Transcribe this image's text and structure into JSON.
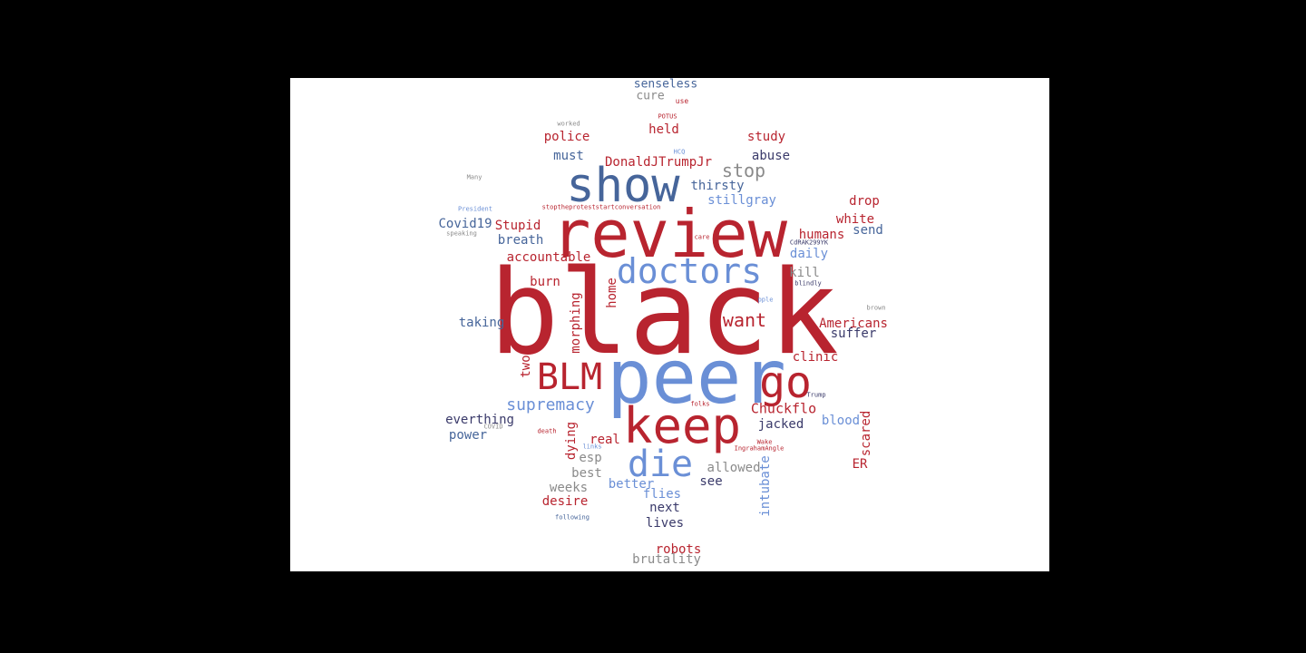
{
  "palette": {
    "red": "#b8242f",
    "lightblue": "#6a8fd6",
    "steel": "#46659a",
    "gray": "#8a8a8a",
    "navy": "#3a3a6a"
  },
  "words": [
    {
      "text": "black",
      "color": "red"
    },
    {
      "text": "peer",
      "color": "lightblue"
    },
    {
      "text": "review",
      "color": "red"
    },
    {
      "text": "show",
      "color": "steel"
    },
    {
      "text": "keep",
      "color": "red"
    },
    {
      "text": "doctors",
      "color": "lightblue"
    },
    {
      "text": "BLM",
      "color": "red"
    },
    {
      "text": "go",
      "color": "red"
    },
    {
      "text": "die",
      "color": "lightblue"
    },
    {
      "text": "stop",
      "color": "gray"
    },
    {
      "text": "want",
      "color": "red"
    },
    {
      "text": "supremacy",
      "color": "lightblue"
    },
    {
      "text": "senseless",
      "color": "steel"
    },
    {
      "text": "cure",
      "color": "gray"
    },
    {
      "text": "held",
      "color": "red"
    },
    {
      "text": "police",
      "color": "red"
    },
    {
      "text": "study",
      "color": "red"
    },
    {
      "text": "must",
      "color": "steel"
    },
    {
      "text": "DonaldJTrumpJr",
      "color": "red"
    },
    {
      "text": "abuse",
      "color": "navy"
    },
    {
      "text": "thirsty",
      "color": "steel"
    },
    {
      "text": "stillgray",
      "color": "lightblue"
    },
    {
      "text": "drop",
      "color": "red"
    },
    {
      "text": "white",
      "color": "red"
    },
    {
      "text": "Covid19",
      "color": "steel"
    },
    {
      "text": "Stupid",
      "color": "red"
    },
    {
      "text": "humans",
      "color": "red"
    },
    {
      "text": "send",
      "color": "steel"
    },
    {
      "text": "breath",
      "color": "steel"
    },
    {
      "text": "daily",
      "color": "lightblue"
    },
    {
      "text": "accountable",
      "color": "red"
    },
    {
      "text": "kill",
      "color": "gray"
    },
    {
      "text": "burn",
      "color": "red"
    },
    {
      "text": "taking",
      "color": "steel"
    },
    {
      "text": "Americans",
      "color": "red"
    },
    {
      "text": "suffer",
      "color": "navy"
    },
    {
      "text": "clinic",
      "color": "red"
    },
    {
      "text": "Chuckflo",
      "color": "red"
    },
    {
      "text": "everthing",
      "color": "navy"
    },
    {
      "text": "power",
      "color": "steel"
    },
    {
      "text": "jacked",
      "color": "navy"
    },
    {
      "text": "blood",
      "color": "lightblue"
    },
    {
      "text": "real",
      "color": "red"
    },
    {
      "text": "esp",
      "color": "gray"
    },
    {
      "text": "allowed",
      "color": "gray"
    },
    {
      "text": "best",
      "color": "gray"
    },
    {
      "text": "ER",
      "color": "red"
    },
    {
      "text": "weeks",
      "color": "gray"
    },
    {
      "text": "better",
      "color": "lightblue"
    },
    {
      "text": "flies",
      "color": "lightblue"
    },
    {
      "text": "see",
      "color": "navy"
    },
    {
      "text": "desire",
      "color": "red"
    },
    {
      "text": "next",
      "color": "navy"
    },
    {
      "text": "lives",
      "color": "navy"
    },
    {
      "text": "robots",
      "color": "red"
    },
    {
      "text": "brutality",
      "color": "gray"
    },
    {
      "text": "morphing",
      "color": "red"
    },
    {
      "text": "home",
      "color": "red"
    },
    {
      "text": "two",
      "color": "red"
    },
    {
      "text": "dying",
      "color": "red"
    },
    {
      "text": "intubate",
      "color": "lightblue"
    },
    {
      "text": "scared",
      "color": "red"
    },
    {
      "text": "use",
      "color": "red"
    },
    {
      "text": "POTUS",
      "color": "red"
    },
    {
      "text": "worked",
      "color": "gray"
    },
    {
      "text": "HCQ",
      "color": "lightblue"
    },
    {
      "text": "Many",
      "color": "gray"
    },
    {
      "text": "President",
      "color": "lightblue"
    },
    {
      "text": "stoptheproteststartconversation",
      "color": "red"
    },
    {
      "text": "speaking",
      "color": "gray"
    },
    {
      "text": "care",
      "color": "red"
    },
    {
      "text": "CdRAK299YK",
      "color": "navy"
    },
    {
      "text": "blindly",
      "color": "navy"
    },
    {
      "text": "pple",
      "color": "lightblue"
    },
    {
      "text": "brown",
      "color": "gray"
    },
    {
      "text": "Trump",
      "color": "navy"
    },
    {
      "text": "folks",
      "color": "red"
    },
    {
      "text": "COVID",
      "color": "gray"
    },
    {
      "text": "death",
      "color": "red"
    },
    {
      "text": "Wake",
      "color": "red"
    },
    {
      "text": "links",
      "color": "lightblue"
    },
    {
      "text": "IngrahamAngle",
      "color": "red"
    },
    {
      "text": "following",
      "color": "steel"
    }
  ]
}
